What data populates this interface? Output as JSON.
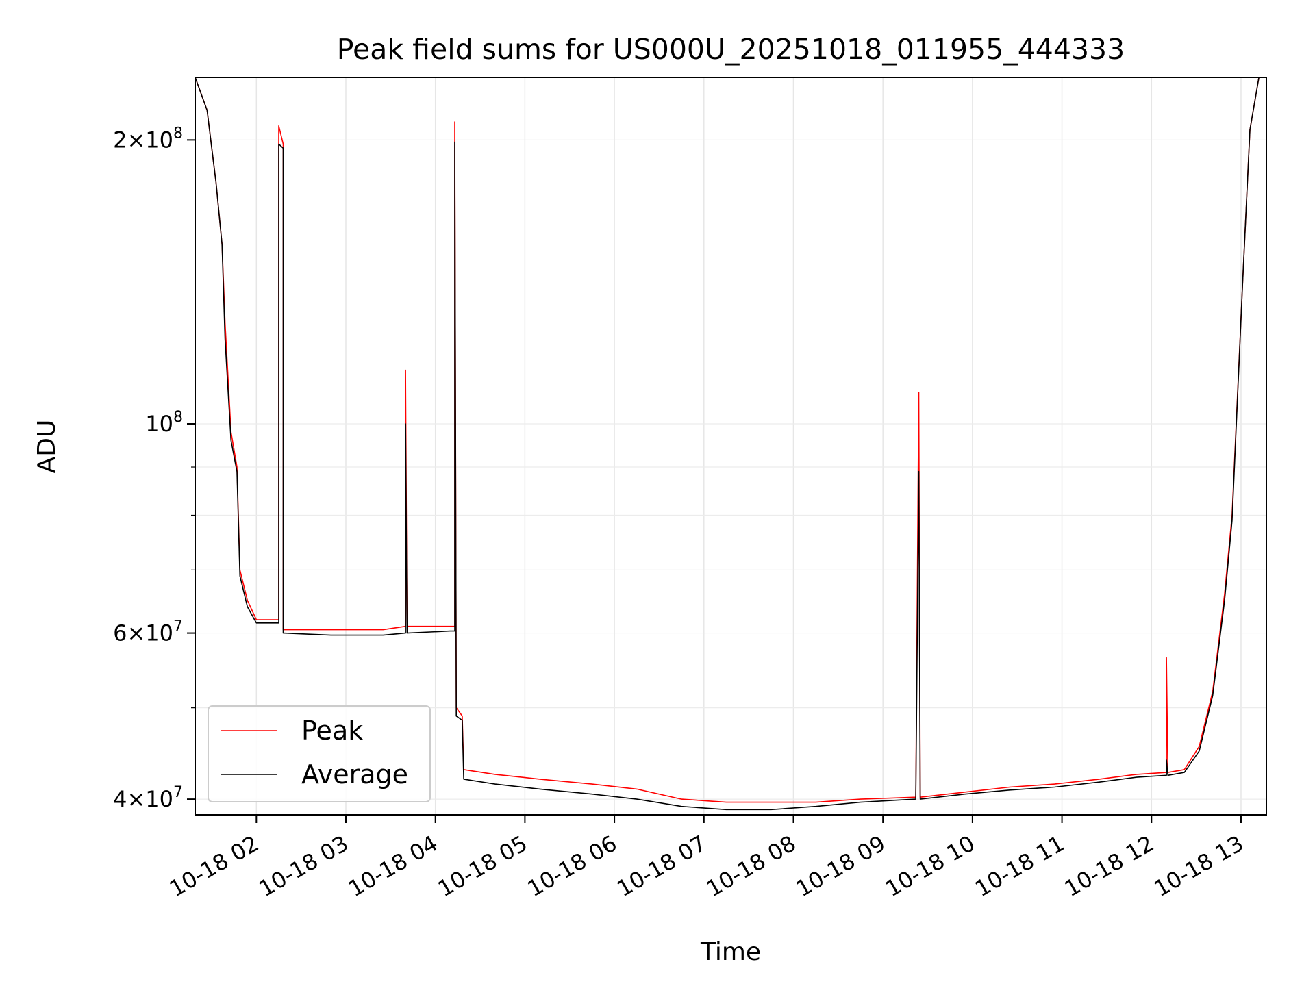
{
  "chart_data": {
    "type": "line",
    "title": "Peak field sums for US000U_20251018_011955_444333",
    "xlabel": "Time",
    "ylabel": "ADU",
    "yscale": "log",
    "xlim": [
      "10-18 01:19",
      "10-18 13:17"
    ],
    "ylim": [
      38500000,
      233000000
    ],
    "grid": true,
    "legend": "lower-left",
    "x_ticks": [
      "10-18 02",
      "10-18 03",
      "10-18 04",
      "10-18 05",
      "10-18 06",
      "10-18 07",
      "10-18 08",
      "10-18 09",
      "10-18 10",
      "10-18 11",
      "10-18 12",
      "10-18 13"
    ],
    "y_ticks": [
      {
        "value": 40000000,
        "mantissa": "4",
        "exp": "7"
      },
      {
        "value": 60000000,
        "mantissa": "6",
        "exp": "7"
      },
      {
        "value": 100000000,
        "mantissa": "",
        "exp": "8"
      },
      {
        "value": 200000000,
        "mantissa": "2",
        "exp": "8"
      }
    ],
    "series": [
      {
        "name": "Peak",
        "color": "#ff0000",
        "points": [
          [
            "10-18 01:19",
            233000000
          ],
          [
            "10-18 01:27",
            215000000
          ],
          [
            "10-18 01:33",
            180000000
          ],
          [
            "10-18 01:37",
            155000000
          ],
          [
            "10-18 01:39",
            128000000
          ],
          [
            "10-18 01:43",
            98000000
          ],
          [
            "10-18 01:47",
            90000000
          ],
          [
            "10-18 01:49",
            70000000
          ],
          [
            "10-18 01:54",
            65000000
          ],
          [
            "10-18 02:00",
            62000000
          ],
          [
            "10-18 02:10",
            62000000
          ],
          [
            "10-18 02:15",
            62000000
          ],
          [
            "10-18 02:15",
            207000000
          ],
          [
            "10-18 02:18",
            198000000
          ],
          [
            "10-18 02:18",
            60500000
          ],
          [
            "10-18 02:50",
            60500000
          ],
          [
            "10-18 03:25",
            60500000
          ],
          [
            "10-18 03:40",
            61000000
          ],
          [
            "10-18 03:40",
            114000000
          ],
          [
            "10-18 03:41",
            61000000
          ],
          [
            "10-18 04:10",
            61000000
          ],
          [
            "10-18 04:13",
            61000000
          ],
          [
            "10-18 04:13",
            209000000
          ],
          [
            "10-18 04:14",
            50000000
          ],
          [
            "10-18 04:18",
            49000000
          ],
          [
            "10-18 04:19",
            43000000
          ],
          [
            "10-18 04:40",
            42500000
          ],
          [
            "10-18 05:10",
            42000000
          ],
          [
            "10-18 05:45",
            41500000
          ],
          [
            "10-18 06:15",
            41000000
          ],
          [
            "10-18 06:45",
            40000000
          ],
          [
            "10-18 07:15",
            39700000
          ],
          [
            "10-18 07:45",
            39700000
          ],
          [
            "10-18 08:15",
            39700000
          ],
          [
            "10-18 08:45",
            40000000
          ],
          [
            "10-18 09:22",
            40200000
          ],
          [
            "10-18 09:24",
            108000000
          ],
          [
            "10-18 09:25",
            40200000
          ],
          [
            "10-18 09:55",
            40700000
          ],
          [
            "10-18 10:25",
            41200000
          ],
          [
            "10-18 10:55",
            41500000
          ],
          [
            "10-18 11:25",
            42000000
          ],
          [
            "10-18 11:50",
            42500000
          ],
          [
            "10-18 12:10",
            42700000
          ],
          [
            "10-18 12:10",
            56500000
          ],
          [
            "10-18 12:11",
            42700000
          ],
          [
            "10-18 12:22",
            43000000
          ],
          [
            "10-18 12:32",
            45500000
          ],
          [
            "10-18 12:41",
            52000000
          ],
          [
            "10-18 12:49",
            66000000
          ],
          [
            "10-18 12:54",
            80000000
          ],
          [
            "10-18 13:01",
            140000000
          ],
          [
            "10-18 13:06",
            205000000
          ],
          [
            "10-18 13:12",
            233000000
          ],
          [
            "10-18 13:17",
            233000000
          ]
        ]
      },
      {
        "name": "Average",
        "color": "#000000",
        "points": [
          [
            "10-18 01:19",
            233000000
          ],
          [
            "10-18 01:27",
            215000000
          ],
          [
            "10-18 01:33",
            180000000
          ],
          [
            "10-18 01:37",
            155000000
          ],
          [
            "10-18 01:39",
            123000000
          ],
          [
            "10-18 01:43",
            96000000
          ],
          [
            "10-18 01:47",
            89000000
          ],
          [
            "10-18 01:49",
            69000000
          ],
          [
            "10-18 01:54",
            64000000
          ],
          [
            "10-18 02:00",
            61500000
          ],
          [
            "10-18 02:10",
            61500000
          ],
          [
            "10-18 02:15",
            61500000
          ],
          [
            "10-18 02:15",
            198000000
          ],
          [
            "10-18 02:18",
            196000000
          ],
          [
            "10-18 02:18",
            60000000
          ],
          [
            "10-18 02:50",
            59700000
          ],
          [
            "10-18 03:25",
            59700000
          ],
          [
            "10-18 03:40",
            60000000
          ],
          [
            "10-18 03:40",
            100000000
          ],
          [
            "10-18 03:41",
            60000000
          ],
          [
            "10-18 04:10",
            60300000
          ],
          [
            "10-18 04:13",
            60300000
          ],
          [
            "10-18 04:13",
            199000000
          ],
          [
            "10-18 04:14",
            49000000
          ],
          [
            "10-18 04:18",
            48500000
          ],
          [
            "10-18 04:19",
            42000000
          ],
          [
            "10-18 04:40",
            41500000
          ],
          [
            "10-18 05:10",
            41000000
          ],
          [
            "10-18 05:45",
            40500000
          ],
          [
            "10-18 06:15",
            40000000
          ],
          [
            "10-18 06:45",
            39300000
          ],
          [
            "10-18 07:15",
            39000000
          ],
          [
            "10-18 07:45",
            39000000
          ],
          [
            "10-18 08:15",
            39300000
          ],
          [
            "10-18 08:45",
            39700000
          ],
          [
            "10-18 09:22",
            40000000
          ],
          [
            "10-18 09:24",
            89000000
          ],
          [
            "10-18 09:25",
            40000000
          ],
          [
            "10-18 09:55",
            40500000
          ],
          [
            "10-18 10:25",
            40900000
          ],
          [
            "10-18 10:55",
            41200000
          ],
          [
            "10-18 11:25",
            41700000
          ],
          [
            "10-18 11:50",
            42200000
          ],
          [
            "10-18 12:10",
            42400000
          ],
          [
            "10-18 12:10",
            44000000
          ],
          [
            "10-18 12:11",
            42400000
          ],
          [
            "10-18 12:22",
            42700000
          ],
          [
            "10-18 12:32",
            45000000
          ],
          [
            "10-18 12:41",
            51500000
          ],
          [
            "10-18 12:49",
            65000000
          ],
          [
            "10-18 12:54",
            79000000
          ],
          [
            "10-18 13:01",
            140000000
          ],
          [
            "10-18 13:06",
            205000000
          ],
          [
            "10-18 13:12",
            233000000
          ],
          [
            "10-18 13:17",
            233000000
          ]
        ]
      }
    ]
  }
}
